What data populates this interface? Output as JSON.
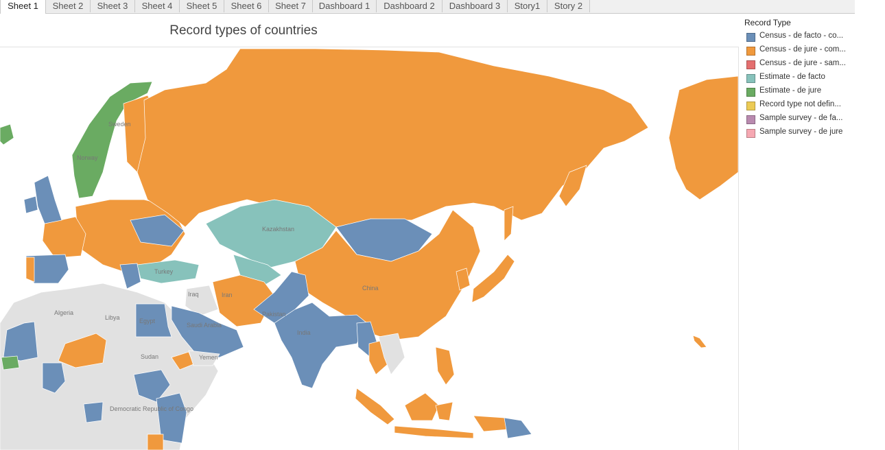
{
  "tabs": [
    "Sheet 1",
    "Sheet 2",
    "Sheet 3",
    "Sheet 4",
    "Sheet 5",
    "Sheet 6",
    "Sheet 7",
    "Dashboard 1",
    "Dashboard 2",
    "Dashboard 3",
    "Story1",
    "Story 2"
  ],
  "active_tab": "Sheet 1",
  "title": "Record types of countries",
  "legend": {
    "title": "Record Type",
    "items": [
      {
        "label": "Census - de facto - co...",
        "color": "#6b8fb8"
      },
      {
        "label": "Census - de jure - com...",
        "color": "#f0993d"
      },
      {
        "label": "Census - de jure - sam...",
        "color": "#e46f6f"
      },
      {
        "label": "Estimate - de facto",
        "color": "#87c2bb"
      },
      {
        "label": "Estimate - de jure",
        "color": "#6aab62"
      },
      {
        "label": "Record type not defin...",
        "color": "#eccb55"
      },
      {
        "label": "Sample survey - de fa...",
        "color": "#b98aaf"
      },
      {
        "label": "Sample survey - de jure",
        "color": "#f6a8b2"
      }
    ]
  },
  "map": {
    "ocean_color": "#ffffff",
    "no_data_color": "#e1e1e1",
    "country_labels": [
      "Kazakhstan",
      "China",
      "Iran",
      "Iraq",
      "Turkey",
      "Saudi Arabia",
      "Yemen",
      "Egypt",
      "Libya",
      "Algeria",
      "Sudan",
      "Democratic Republic of Congo",
      "India",
      "Pakistan",
      "Sweden",
      "Norway"
    ]
  }
}
